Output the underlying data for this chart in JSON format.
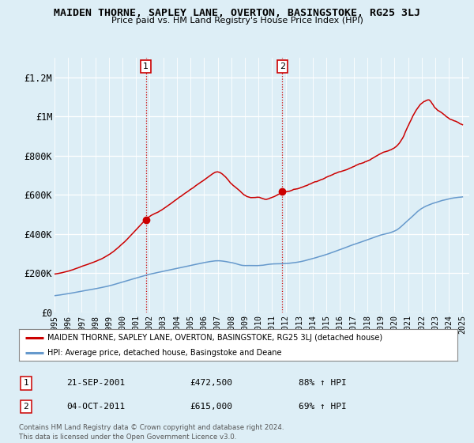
{
  "title": "MAIDEN THORNE, SAPLEY LANE, OVERTON, BASINGSTOKE, RG25 3LJ",
  "subtitle": "Price paid vs. HM Land Registry's House Price Index (HPI)",
  "ylabel_ticks": [
    "£0",
    "£200K",
    "£400K",
    "£600K",
    "£800K",
    "£1M",
    "£1.2M"
  ],
  "ytick_values": [
    0,
    200000,
    400000,
    600000,
    800000,
    1000000,
    1200000
  ],
  "ylim": [
    0,
    1300000
  ],
  "xlim_start": 1995.0,
  "xlim_end": 2025.5,
  "bg_color": "#ddeef6",
  "red_line_color": "#cc0000",
  "blue_line_color": "#6699cc",
  "marker1_x": 2001.72,
  "marker1_y": 472500,
  "marker2_x": 2011.75,
  "marker2_y": 615000,
  "legend_red_label": "MAIDEN THORNE, SAPLEY LANE, OVERTON, BASINGSTOKE, RG25 3LJ (detached house)",
  "legend_blue_label": "HPI: Average price, detached house, Basingstoke and Deane",
  "annotation1_num": "1",
  "annotation1_date": "21-SEP-2001",
  "annotation1_price": "£472,500",
  "annotation1_hpi": "88% ↑ HPI",
  "annotation2_num": "2",
  "annotation2_date": "04-OCT-2011",
  "annotation2_price": "£615,000",
  "annotation2_hpi": "69% ↑ HPI",
  "footer": "Contains HM Land Registry data © Crown copyright and database right 2024.\nThis data is licensed under the Open Government Licence v3.0.",
  "red_curve_years": [
    1995,
    1996,
    1997,
    1998,
    1999,
    2000,
    2001,
    2001.72,
    2002,
    2003,
    2004,
    2005,
    2006,
    2007,
    2007.5,
    2008,
    2008.5,
    2009,
    2009.5,
    2010,
    2010.5,
    2011,
    2011.75,
    2012,
    2012.5,
    2013,
    2014,
    2015,
    2016,
    2017,
    2018,
    2019,
    2020,
    2020.5,
    2021,
    2021.5,
    2022,
    2022.5,
    2023,
    2023.5,
    2024,
    2024.5,
    2025
  ],
  "red_curve_vals": [
    195000,
    210000,
    235000,
    260000,
    295000,
    350000,
    420000,
    472500,
    490000,
    530000,
    580000,
    630000,
    680000,
    720000,
    700000,
    660000,
    630000,
    600000,
    590000,
    590000,
    580000,
    590000,
    615000,
    620000,
    630000,
    640000,
    670000,
    700000,
    730000,
    760000,
    790000,
    830000,
    860000,
    900000,
    980000,
    1050000,
    1100000,
    1120000,
    1080000,
    1050000,
    1020000,
    1000000,
    980000
  ],
  "blue_curve_years": [
    1995,
    1996,
    1997,
    1998,
    1999,
    2000,
    2001,
    2002,
    2003,
    2004,
    2005,
    2006,
    2007,
    2008,
    2009,
    2010,
    2011,
    2012,
    2013,
    2014,
    2015,
    2016,
    2017,
    2018,
    2019,
    2020,
    2021,
    2022,
    2023,
    2024,
    2025
  ],
  "blue_curve_vals": [
    85000,
    95000,
    108000,
    120000,
    135000,
    155000,
    175000,
    195000,
    210000,
    225000,
    240000,
    255000,
    265000,
    255000,
    240000,
    240000,
    248000,
    250000,
    258000,
    275000,
    295000,
    320000,
    345000,
    370000,
    395000,
    415000,
    470000,
    530000,
    560000,
    580000,
    590000
  ]
}
